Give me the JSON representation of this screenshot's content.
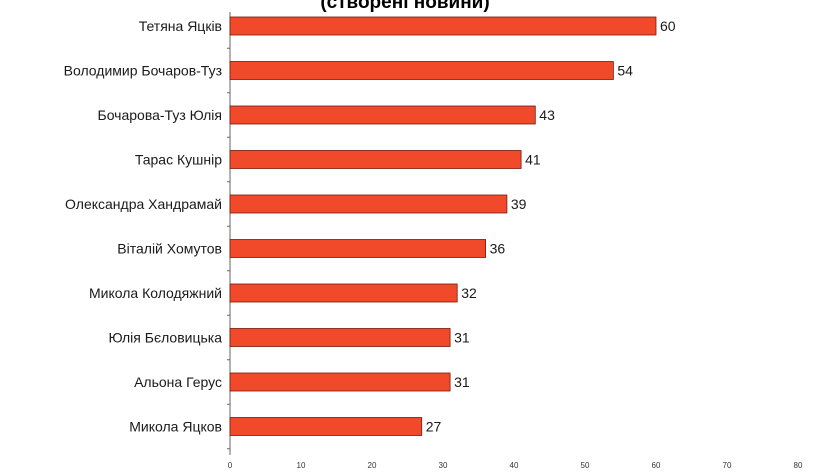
{
  "chart_data": {
    "type": "bar",
    "orientation": "horizontal",
    "title": "(створені новини)",
    "categories": [
      "Тетяна Яцків",
      "Володимир Бочаров-Туз",
      "Бочарова-Туз Юлія",
      "Тарас Кушнір",
      "Олександра Хандрамай",
      "Віталій Хомутов",
      "Микола Колодяжний",
      "Юлія Бєловицька",
      "Альона Герус",
      "Микола Яцков"
    ],
    "values": [
      60,
      54,
      43,
      41,
      39,
      36,
      32,
      31,
      31,
      27
    ],
    "value_labels": [
      "60",
      "54",
      "43",
      "41",
      "39",
      "36",
      "32",
      "31",
      "31",
      "27"
    ],
    "xticks": [
      "0",
      "10",
      "20",
      "30",
      "40",
      "50",
      "60",
      "70",
      "80"
    ],
    "xlim": [
      0,
      80
    ],
    "grid": false,
    "legend": "none",
    "bar_color": "#f04a2a",
    "bar_edge_color": "#7a1a0a"
  }
}
